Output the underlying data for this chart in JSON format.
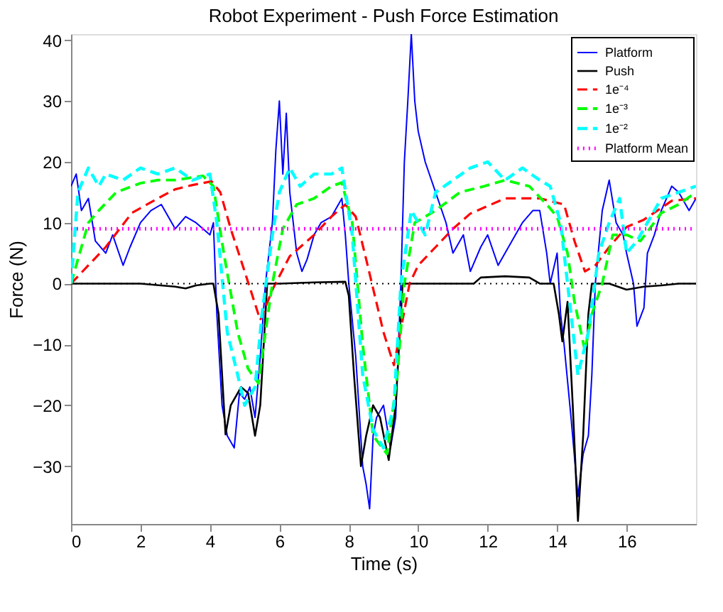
{
  "chart_data": {
    "type": "line",
    "title": "Robot Experiment - Push Force Estimation",
    "xlabel": "Time (s)",
    "ylabel": "Force (N)",
    "xlim": [
      0,
      18
    ],
    "xticks": [
      0,
      2,
      4,
      6,
      8,
      10,
      12,
      14,
      16
    ],
    "ylim": [
      -39.5,
      41
    ],
    "yticks": [
      -30,
      -20,
      -10,
      0,
      10,
      20,
      30,
      40
    ],
    "grid": false,
    "legend": "top right",
    "marker": "none",
    "ref_lines": [
      {
        "axis": "y",
        "value": 0,
        "label": null,
        "color": "#000000",
        "line_style": "dotted"
      }
    ],
    "series": [
      {
        "name": "Platform",
        "color": "#0000ff",
        "line_style": "solid",
        "x": [
          0,
          0.15,
          0.3,
          0.5,
          0.7,
          1,
          1.2,
          1.5,
          1.7,
          2,
          2.3,
          2.6,
          3,
          3.3,
          3.6,
          4,
          4.1,
          4.2,
          4.35,
          4.5,
          4.7,
          4.85,
          5,
          5.15,
          5.3,
          5.45,
          5.6,
          5.7,
          5.8,
          5.9,
          6,
          6.1,
          6.2,
          6.3,
          6.4,
          6.5,
          6.65,
          6.8,
          7,
          7.2,
          7.5,
          7.8,
          7.9,
          8,
          8.2,
          8.4,
          8.5,
          8.6,
          8.7,
          8.8,
          9,
          9.2,
          9.35,
          9.5,
          9.6,
          9.7,
          9.8,
          9.9,
          10,
          10.2,
          10.5,
          10.8,
          11,
          11.3,
          11.5,
          11.8,
          12,
          12.3,
          12.5,
          12.8,
          13,
          13.3,
          13.5,
          13.7,
          13.8,
          14,
          14.1,
          14.2,
          14.4,
          14.6,
          14.75,
          14.9,
          15,
          15.1,
          15.3,
          15.5,
          15.7,
          15.9,
          16,
          16.2,
          16.3,
          16.5,
          16.6,
          16.8,
          17,
          17.3,
          17.5,
          17.8,
          18
        ],
        "values": [
          16,
          18,
          12,
          14,
          7,
          5,
          8,
          3,
          6,
          10,
          12,
          13,
          9,
          11,
          10,
          8,
          10,
          -5,
          -20,
          -25,
          -27,
          -18,
          -19,
          -17,
          -22,
          -12,
          0,
          5,
          10,
          22,
          30,
          18,
          28,
          15,
          10,
          5,
          2,
          4,
          8,
          10,
          11,
          14,
          8,
          0,
          -12,
          -30,
          -33,
          -37,
          -25,
          -22,
          -20,
          -27,
          -22,
          0,
          20,
          30,
          41,
          30,
          25,
          20,
          15,
          10,
          5,
          8,
          2,
          6,
          8,
          3,
          5,
          8,
          10,
          12,
          12,
          5,
          0,
          5,
          -5,
          -10,
          -22,
          -35,
          -28,
          -25,
          -15,
          0,
          12,
          17,
          10,
          8,
          5,
          0,
          -7,
          -4,
          5,
          8,
          12,
          16,
          15,
          12,
          14
        ]
      },
      {
        "name": "Push",
        "color": "#000000",
        "line_style": "solid",
        "x": [
          0,
          1,
          2,
          3,
          3.3,
          3.6,
          4,
          4.1,
          4.25,
          4.45,
          4.6,
          4.9,
          5.1,
          5.3,
          5.45,
          5.65,
          6,
          7,
          7.9,
          8,
          8.15,
          8.35,
          8.5,
          8.7,
          8.9,
          9.15,
          9.35,
          9.55,
          10,
          11,
          11.6,
          11.8,
          12.5,
          13.2,
          13.5,
          13.9,
          14.05,
          14.15,
          14.3,
          14.45,
          14.6,
          14.75,
          14.9,
          15,
          15.5,
          16,
          16.5,
          17,
          17.5,
          18
        ],
        "values": [
          0,
          0,
          0,
          -0.5,
          -0.8,
          -0.3,
          0,
          0,
          -5,
          -24.8,
          -20,
          -17,
          -18,
          -25,
          -20,
          0,
          0,
          0.2,
          0.3,
          -2,
          -15,
          -30,
          -25,
          -20,
          -22,
          -29,
          -20,
          0,
          0,
          0,
          0,
          1,
          1.2,
          1,
          0,
          0,
          -5,
          -9.5,
          -3,
          -20,
          -39,
          -25,
          -5,
          0,
          0,
          -1,
          -0.5,
          -0.3,
          0,
          0
        ]
      },
      {
        "name": "1e⁻⁴",
        "color": "#ff0000",
        "line_style": "dashed",
        "x": [
          0,
          0.5,
          1,
          1.75,
          2.5,
          3,
          3.5,
          4.05,
          4.3,
          4.6,
          5,
          5.45,
          5.8,
          6.3,
          7,
          7.5,
          7.9,
          8.2,
          8.5,
          9,
          9.3,
          9.75,
          10,
          10.5,
          11,
          11.5,
          12.5,
          13.5,
          14.2,
          14.5,
          14.8,
          15.1,
          15.5,
          16,
          16.5,
          17.3,
          18
        ],
        "values": [
          0,
          3,
          6,
          11.6,
          14,
          15.5,
          16.2,
          16.8,
          15,
          9,
          2,
          -6,
          -1,
          4.5,
          8,
          11,
          13,
          11,
          4,
          -8,
          -13.4,
          0,
          3,
          6,
          9,
          11.5,
          14,
          14,
          13,
          7,
          2,
          3,
          6,
          9.3,
          10.5,
          13.6,
          14
        ]
      },
      {
        "name": "1e⁻³",
        "color": "#00ff00",
        "line_style": "dashed",
        "x": [
          0,
          0.3,
          0.5,
          0.8,
          1.3,
          2,
          2.5,
          3,
          3.8,
          4.1,
          4.4,
          4.8,
          5.1,
          5.4,
          5.6,
          5.8,
          6.1,
          6.5,
          7,
          7.5,
          7.8,
          8.1,
          8.4,
          8.7,
          9.1,
          9.4,
          9.6,
          9.9,
          10.5,
          11.2,
          11.9,
          12.5,
          13.2,
          13.7,
          14,
          14.3,
          14.5,
          14.8,
          15,
          15.3,
          15.6,
          16,
          16.4,
          17,
          17.5,
          18
        ],
        "values": [
          0,
          6,
          10,
          12,
          15,
          16.5,
          17,
          17,
          17.7,
          16,
          5,
          -8,
          -14,
          -16.4,
          -8,
          0,
          9,
          13,
          14,
          16,
          16.6,
          10,
          -10,
          -25,
          -28,
          -15,
          0,
          10,
          12,
          15,
          16,
          17,
          16,
          13,
          11,
          5,
          -3,
          -11,
          -5,
          0,
          8,
          8,
          7,
          11.6,
          13,
          15
        ]
      },
      {
        "name": "1e⁻²",
        "color": "#00ffff",
        "line_style": "dashed",
        "x": [
          0,
          0.2,
          0.5,
          0.8,
          1,
          1.5,
          2,
          2.5,
          3,
          3.5,
          4,
          4.2,
          4.5,
          4.8,
          5,
          5.3,
          5.5,
          5.8,
          6,
          6.3,
          6.6,
          7,
          7.5,
          7.8,
          8.1,
          8.4,
          8.7,
          9,
          9.3,
          9.5,
          9.8,
          10.2,
          10.5,
          11,
          11.5,
          12,
          12.5,
          13,
          13.5,
          13.8,
          14.1,
          14.4,
          14.6,
          14.9,
          15.2,
          15.5,
          15.8,
          16,
          16.3,
          16.6,
          17,
          17.5,
          18
        ],
        "values": [
          0,
          15,
          19,
          16,
          18,
          17,
          19,
          18,
          19,
          17,
          18,
          10,
          -8,
          -15,
          -20,
          -17,
          -5,
          8,
          15,
          19,
          16,
          18,
          18,
          19,
          8,
          -15,
          -24,
          -27,
          -20,
          0,
          12,
          8,
          15,
          17,
          19,
          20,
          17,
          19,
          17,
          16,
          10,
          -5,
          -15,
          -8,
          5,
          10,
          14,
          5,
          7,
          10,
          14,
          15,
          16
        ]
      },
      {
        "name": "Platform Mean",
        "color": "#ff00ff",
        "line_style": "dotted",
        "x": [
          0,
          18
        ],
        "values": [
          9,
          9
        ]
      }
    ]
  }
}
